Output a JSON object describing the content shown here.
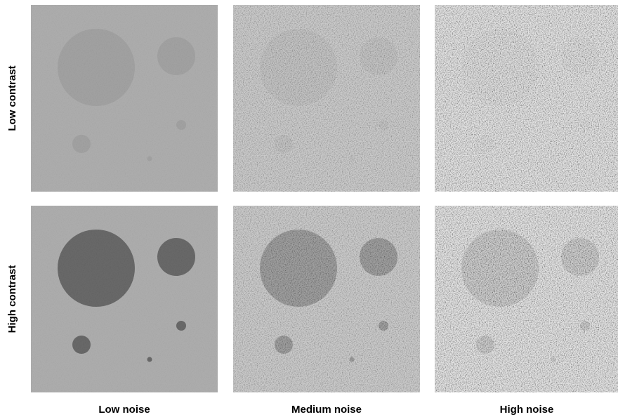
{
  "columns": [
    "Low noise",
    "Medium noise",
    "High noise"
  ],
  "rows": [
    "Low contrast",
    "High contrast"
  ]
}
